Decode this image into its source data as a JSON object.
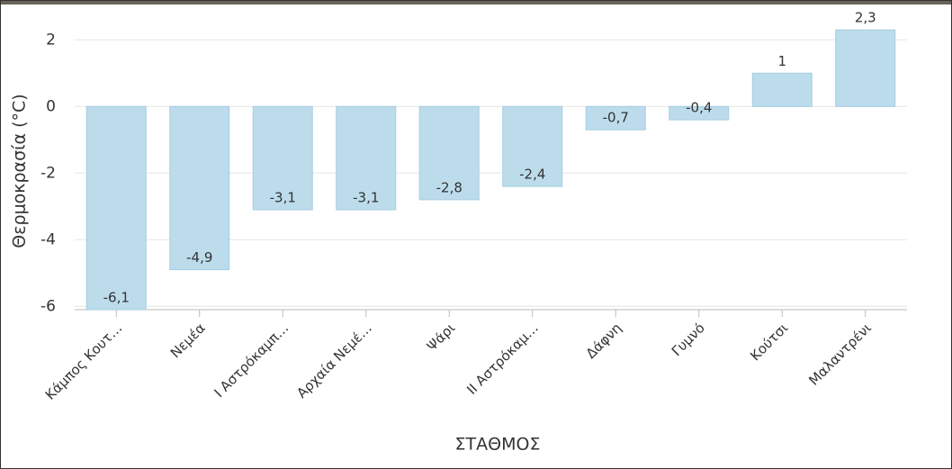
{
  "chart_data": {
    "type": "bar",
    "x_label": "ΣΤΑΘΜΟΣ",
    "y_label": "Θερμοκρασία (°C)",
    "categories": [
      "Κάμπος Κουτ…",
      "Νεμέα",
      "Ι Αστρόκαμπ…",
      "Αρχαία Νεμέ…",
      "Ψάρι",
      "ΙΙ Αστρόκαμ…",
      "Δάφνη",
      "Γυμνό",
      "Κούτσι",
      "Μαλαντρένι"
    ],
    "values": [
      -6.1,
      -4.9,
      -3.1,
      -3.1,
      -2.8,
      -2.4,
      -0.7,
      -0.4,
      1,
      2.3
    ],
    "value_labels": [
      "-6,1",
      "-4,9",
      "-3,1",
      "-3,1",
      "-2,8",
      "-2,4",
      "-0,7",
      "-0,4",
      "1",
      "2,3"
    ],
    "color": "#bcdcec",
    "ylim": [
      -6.1,
      3
    ],
    "yticks": [
      -6,
      -4,
      -2,
      0,
      2
    ],
    "grid": true
  }
}
